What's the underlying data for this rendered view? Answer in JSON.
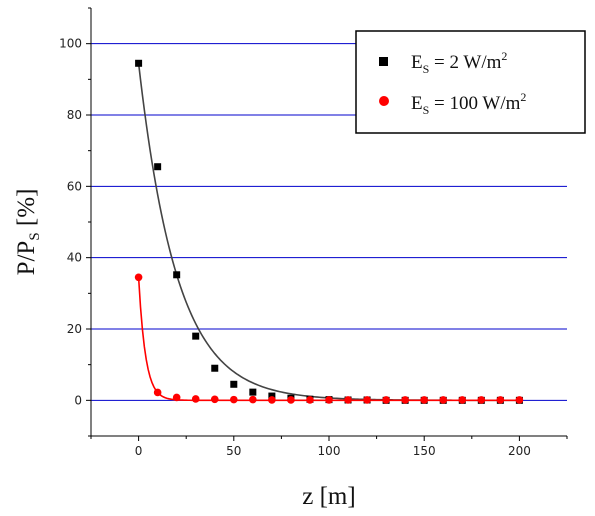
{
  "chart_data": {
    "type": "scatter",
    "title": "",
    "xlabel": {
      "main": "z [m]"
    },
    "ylabel": {
      "main": "P/P",
      "sub": "S",
      "suffix": " [%]"
    },
    "xlim": [
      -25,
      225
    ],
    "ylim": [
      -10,
      110
    ],
    "x_ticks": [
      0,
      50,
      100,
      150,
      200
    ],
    "x_tick_labels": [
      "0",
      "50",
      "100",
      "150",
      "200"
    ],
    "y_ticks": [
      0,
      20,
      40,
      60,
      80,
      100
    ],
    "y_tick_labels": [
      "0",
      "20",
      "40",
      "60",
      "80",
      "100"
    ],
    "grid": "horizontal lines at major y ticks",
    "grid_color": "#0000cc",
    "legend_position": "top-right",
    "series": [
      {
        "legend": {
          "prefix": "E",
          "sub": "S",
          "middle": " = 2 W/m",
          "sup": "2"
        },
        "color": "#000000",
        "marker": "square",
        "fit_color": "#444444",
        "x": [
          0,
          10,
          20,
          30,
          40,
          50,
          60,
          70,
          80,
          90,
          100,
          110,
          120,
          130,
          140,
          150,
          160,
          170,
          180,
          190,
          200
        ],
        "y": [
          94.5,
          65.5,
          35.2,
          18.0,
          9.0,
          4.5,
          2.3,
          1.2,
          0.6,
          0.3,
          0.2,
          0.1,
          0.1,
          0,
          0,
          0,
          0,
          0,
          0,
          0,
          0
        ]
      },
      {
        "legend": {
          "prefix": "E",
          "sub": "S",
          "middle": " = 100 W/m",
          "sup": "2"
        },
        "color": "#ff0000",
        "marker": "circle",
        "fit_color": "#ff0000",
        "x": [
          0,
          10,
          20,
          30,
          40,
          50,
          60,
          70,
          80,
          90,
          100,
          110,
          120,
          130,
          140,
          150,
          160,
          170,
          180,
          190,
          200
        ],
        "y": [
          34.5,
          2.2,
          0.8,
          0.4,
          0.3,
          0.2,
          0.2,
          0.1,
          0.1,
          0.1,
          0.1,
          0.1,
          0.1,
          0.1,
          0.1,
          0.1,
          0.1,
          0.1,
          0.1,
          0.1,
          0.1
        ]
      }
    ]
  }
}
